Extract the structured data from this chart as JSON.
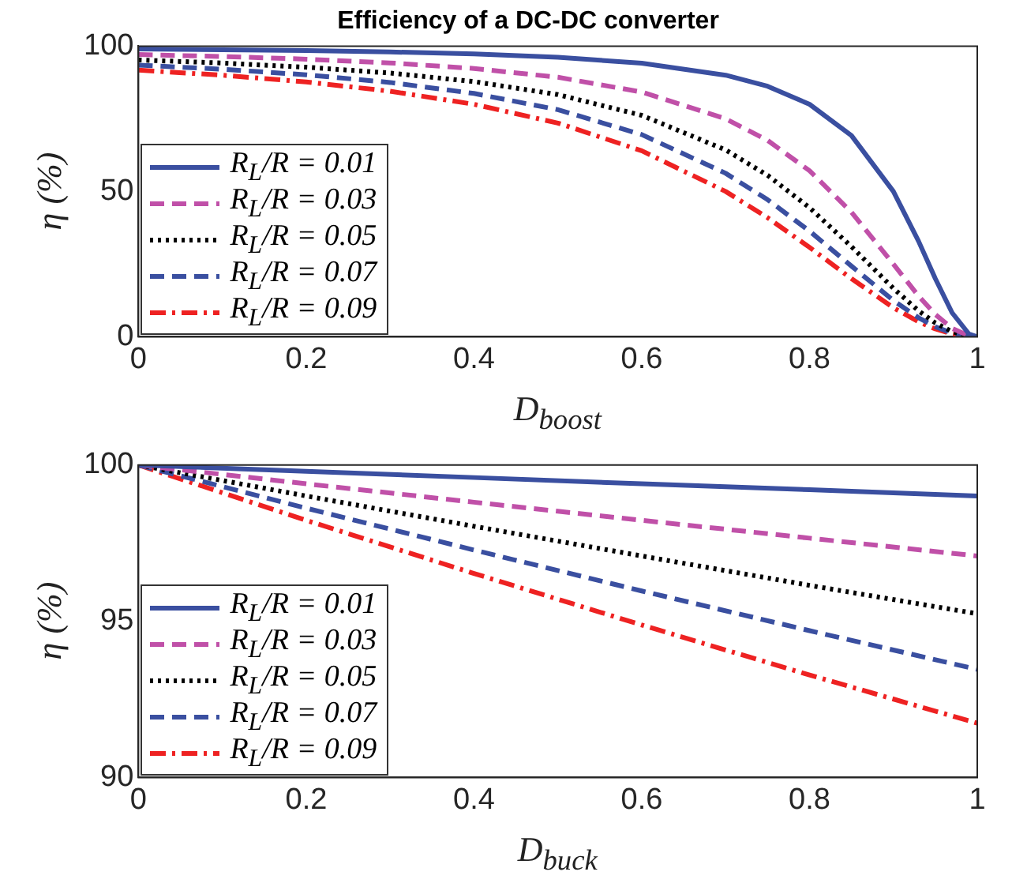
{
  "chart_data": [
    {
      "type": "line",
      "title": "Efficiency of a DC-DC converter",
      "xlabel": "D$_{boost}$",
      "ylabel": "η (%)",
      "x": [
        0,
        0.1,
        0.2,
        0.3,
        0.4,
        0.5,
        0.6,
        0.7,
        0.75,
        0.8,
        0.85,
        0.9,
        0.93,
        0.95,
        0.97,
        0.99,
        1
      ],
      "xlim": [
        0,
        1
      ],
      "xticks": [
        0,
        0.2,
        0.4,
        0.6,
        0.8,
        1
      ],
      "ylim": [
        0,
        100
      ],
      "yticks": [
        0,
        50,
        100
      ],
      "grid": false,
      "legend": "bottom left",
      "series": [
        {
          "name": "R$_{L}$/R = 0.01",
          "color": "#3a4fa0",
          "line_style": "solid",
          "values": [
            99.0,
            98.78,
            98.46,
            98.0,
            97.3,
            96.15,
            94.12,
            90.0,
            86.21,
            80.0,
            69.23,
            50.0,
            32.89,
            20.0,
            8.26,
            0.99,
            0
          ]
        },
        {
          "name": "R$_{L}$/R = 0.03",
          "color": "#c050a8",
          "line_style": "dashed",
          "values": [
            97.09,
            96.43,
            95.52,
            94.23,
            92.31,
            89.29,
            84.21,
            75.0,
            67.57,
            57.14,
            42.86,
            25.0,
            14.04,
            7.69,
            2.91,
            0.33,
            0
          ]
        },
        {
          "name": "R$_{L}$/R = 0.05",
          "color": "#000000",
          "line_style": "dotted",
          "values": [
            95.24,
            94.19,
            92.75,
            90.74,
            87.8,
            83.33,
            76.19,
            64.29,
            55.56,
            44.44,
            31.03,
            16.67,
            8.93,
            4.76,
            1.77,
            0.2,
            0
          ]
        },
        {
          "name": "R$_{L}$/R = 0.07",
          "color": "#3a4fa0",
          "line_style": "dashed",
          "values": [
            93.46,
            92.05,
            90.14,
            87.5,
            83.72,
            78.13,
            69.57,
            56.25,
            47.17,
            36.36,
            24.32,
            12.5,
            6.54,
            3.45,
            1.27,
            0.14,
            0
          ]
        },
        {
          "name": "R$_{L}$/R = 0.09",
          "color": "#ee2222",
          "line_style": "dashdot",
          "values": [
            91.74,
            90.0,
            87.67,
            84.48,
            80.0,
            73.53,
            64.0,
            50.0,
            40.98,
            30.77,
            20.0,
            10.0,
            5.16,
            2.7,
            0.99,
            0.11,
            0
          ]
        }
      ]
    },
    {
      "type": "line",
      "xlabel": "D$_{buck}$",
      "ylabel": "η (%)",
      "x": [
        0,
        0.2,
        0.4,
        0.6,
        0.8,
        1
      ],
      "xlim": [
        0,
        1
      ],
      "xticks": [
        0,
        0.2,
        0.4,
        0.6,
        0.8,
        1
      ],
      "ylim": [
        90,
        100
      ],
      "yticks": [
        90,
        95,
        100
      ],
      "grid": false,
      "legend": "bottom left",
      "series": [
        {
          "name": "R$_{L}$/R = 0.01",
          "color": "#3a4fa0",
          "line_style": "solid",
          "values": [
            100,
            99.8,
            99.6,
            99.4,
            99.21,
            99.01
          ]
        },
        {
          "name": "R$_{L}$/R = 0.03",
          "color": "#c050a8",
          "line_style": "dashed",
          "values": [
            100,
            99.4,
            98.81,
            98.23,
            97.66,
            97.09
          ]
        },
        {
          "name": "R$_{L}$/R = 0.05",
          "color": "#000000",
          "line_style": "dotted",
          "values": [
            100,
            99.01,
            98.04,
            97.09,
            96.15,
            95.24
          ]
        },
        {
          "name": "R$_{L}$/R = 0.07",
          "color": "#3a4fa0",
          "line_style": "dashed",
          "values": [
            100,
            98.62,
            97.28,
            95.97,
            94.7,
            93.46
          ]
        },
        {
          "name": "R$_{L}$/R = 0.09",
          "color": "#ee2222",
          "line_style": "dashdot",
          "values": [
            100,
            98.23,
            96.53,
            94.88,
            93.28,
            91.74
          ]
        }
      ]
    }
  ]
}
